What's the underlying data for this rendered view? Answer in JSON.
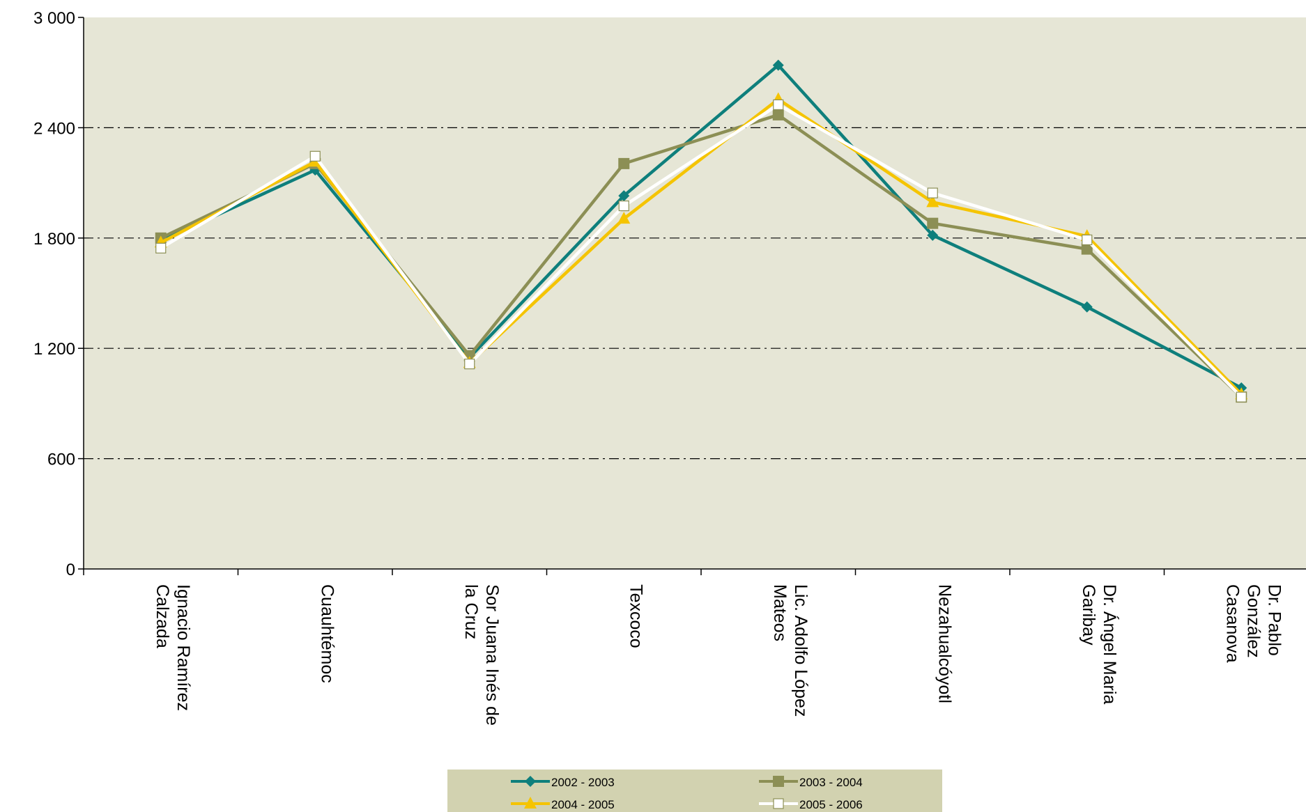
{
  "chart_data": {
    "type": "line",
    "title": "",
    "xlabel": "",
    "ylabel": "",
    "categories": [
      [
        "Ignacio Ramírez",
        "Calzada"
      ],
      [
        "Cuauhtémoc"
      ],
      [
        "Sor Juana Inés de",
        "la Cruz"
      ],
      [
        "Texcoco"
      ],
      [
        "Lic. Adolfo López",
        "Mateos"
      ],
      [
        "Nezahualcóyotl"
      ],
      [
        "Dr. Ángel Maria",
        "Garibay"
      ],
      [
        "Dr. Pablo",
        "González",
        "Casanova"
      ]
    ],
    "ylim": [
      0,
      3000
    ],
    "yticks": [
      0,
      600,
      1200,
      1800,
      2400,
      3000
    ],
    "ytick_labels": [
      "0",
      "600",
      "1 200",
      "1 800",
      "2 400",
      "3 000"
    ],
    "grid": true,
    "legend_position": "bottom",
    "series": [
      {
        "name": "2002 - 2003",
        "color": "#0e7f7c",
        "marker": "diamond",
        "values": [
          1785,
          2170,
          1150,
          2030,
          2740,
          1815,
          1425,
          985
        ]
      },
      {
        "name": "2003 - 2004",
        "color": "#8c8f55",
        "marker": "square",
        "values": [
          1800,
          2205,
          1160,
          2205,
          2470,
          1880,
          1740,
          935
        ]
      },
      {
        "name": "2004 - 2005",
        "color": "#f5c400",
        "marker": "triangle",
        "values": [
          1775,
          2215,
          1120,
          1905,
          2555,
          1995,
          1810,
          950
        ]
      },
      {
        "name": "2005 - 2006",
        "color": "#ffffff",
        "marker": "square-open",
        "values": [
          1745,
          2245,
          1115,
          1975,
          2525,
          2045,
          1790,
          935
        ]
      }
    ]
  },
  "colors": {
    "plot_background": "#e6e6d6",
    "legend_background": "#d2d2b0",
    "grid": "#000000",
    "axis": "#000000"
  }
}
